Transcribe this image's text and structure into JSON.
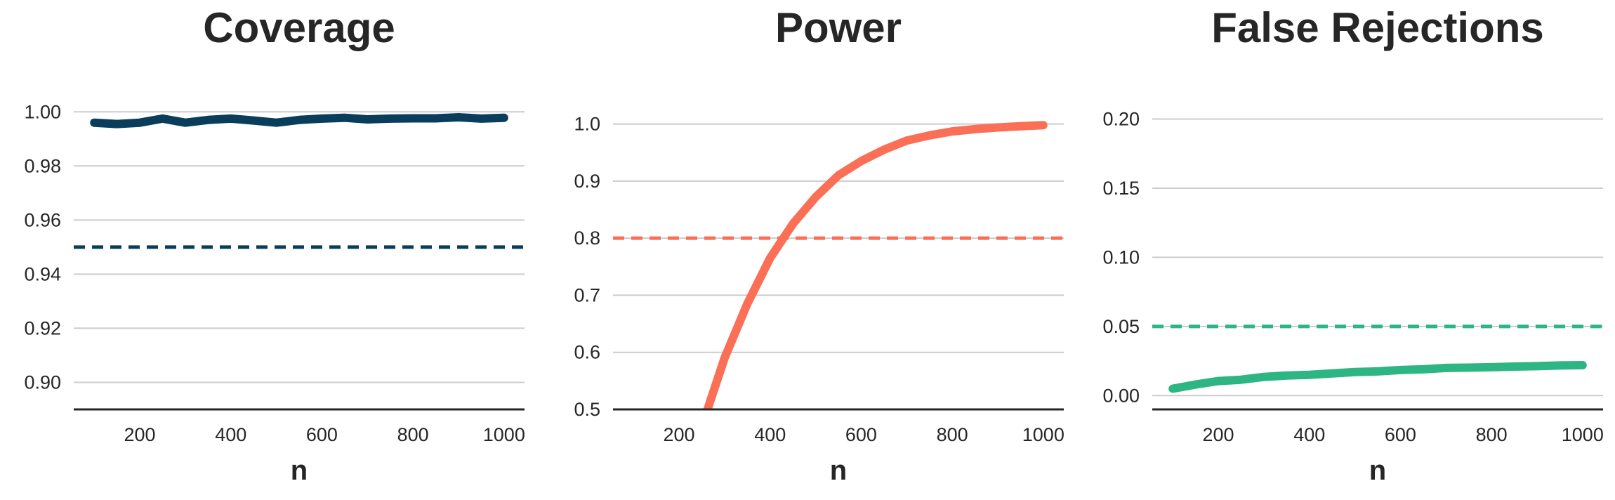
{
  "chart_data": [
    {
      "type": "line",
      "title": "Coverage",
      "xlabel": "n",
      "ylabel": "",
      "xlim": [
        55,
        1045
      ],
      "ylim": [
        0.89,
        1.005
      ],
      "xticks": [
        "200",
        "400",
        "600",
        "800",
        "1000"
      ],
      "yticks": [
        "0.90",
        "0.92",
        "0.94",
        "0.96",
        "0.98",
        "1.00"
      ],
      "grid": true,
      "color": "#0a3d5c",
      "reference_line": {
        "y": 0.95,
        "style": "dashed"
      },
      "series": [
        {
          "x": [
            100,
            150,
            200,
            250,
            300,
            350,
            400,
            450,
            500,
            550,
            600,
            650,
            700,
            750,
            800,
            850,
            900,
            950,
            1000
          ],
          "values": [
            0.996,
            0.9955,
            0.996,
            0.9975,
            0.996,
            0.997,
            0.9975,
            0.9968,
            0.996,
            0.997,
            0.9975,
            0.9978,
            0.9972,
            0.9975,
            0.9976,
            0.9976,
            0.998,
            0.9975,
            0.9978
          ]
        }
      ]
    },
    {
      "type": "line",
      "title": "Power",
      "xlabel": "n",
      "ylabel": "",
      "xlim": [
        55,
        1045
      ],
      "ylim": [
        0.5,
        1.045
      ],
      "xticks": [
        "200",
        "400",
        "600",
        "800",
        "1000"
      ],
      "yticks": [
        "0.5",
        "0.6",
        "0.7",
        "0.8",
        "0.9",
        "1.0"
      ],
      "grid": true,
      "color": "#fa6f56",
      "reference_line": {
        "y": 0.8,
        "style": "dashed"
      },
      "series": [
        {
          "x": [
            250,
            300,
            350,
            400,
            450,
            500,
            550,
            600,
            650,
            700,
            750,
            800,
            850,
            900,
            950,
            1000
          ],
          "values": [
            0.47,
            0.59,
            0.685,
            0.765,
            0.825,
            0.872,
            0.91,
            0.935,
            0.955,
            0.971,
            0.98,
            0.987,
            0.991,
            0.994,
            0.996,
            0.998
          ]
        }
      ]
    },
    {
      "type": "line",
      "title": "False Rejections",
      "xlabel": "n",
      "ylabel": "",
      "xlim": [
        55,
        1045
      ],
      "ylim": [
        -0.01,
        0.215
      ],
      "xticks": [
        "200",
        "400",
        "600",
        "800",
        "1000"
      ],
      "yticks": [
        "0.00",
        "0.05",
        "0.10",
        "0.15",
        "0.20"
      ],
      "grid": true,
      "color": "#2db584",
      "reference_line": {
        "y": 0.05,
        "style": "dashed"
      },
      "series": [
        {
          "x": [
            100,
            150,
            200,
            250,
            300,
            350,
            400,
            450,
            500,
            550,
            600,
            650,
            700,
            750,
            800,
            850,
            900,
            950,
            1000
          ],
          "values": [
            0.005,
            0.008,
            0.0105,
            0.0115,
            0.0135,
            0.0145,
            0.015,
            0.016,
            0.017,
            0.0175,
            0.0185,
            0.019,
            0.02,
            0.0202,
            0.0205,
            0.021,
            0.0213,
            0.0218,
            0.022
          ]
        }
      ]
    }
  ]
}
